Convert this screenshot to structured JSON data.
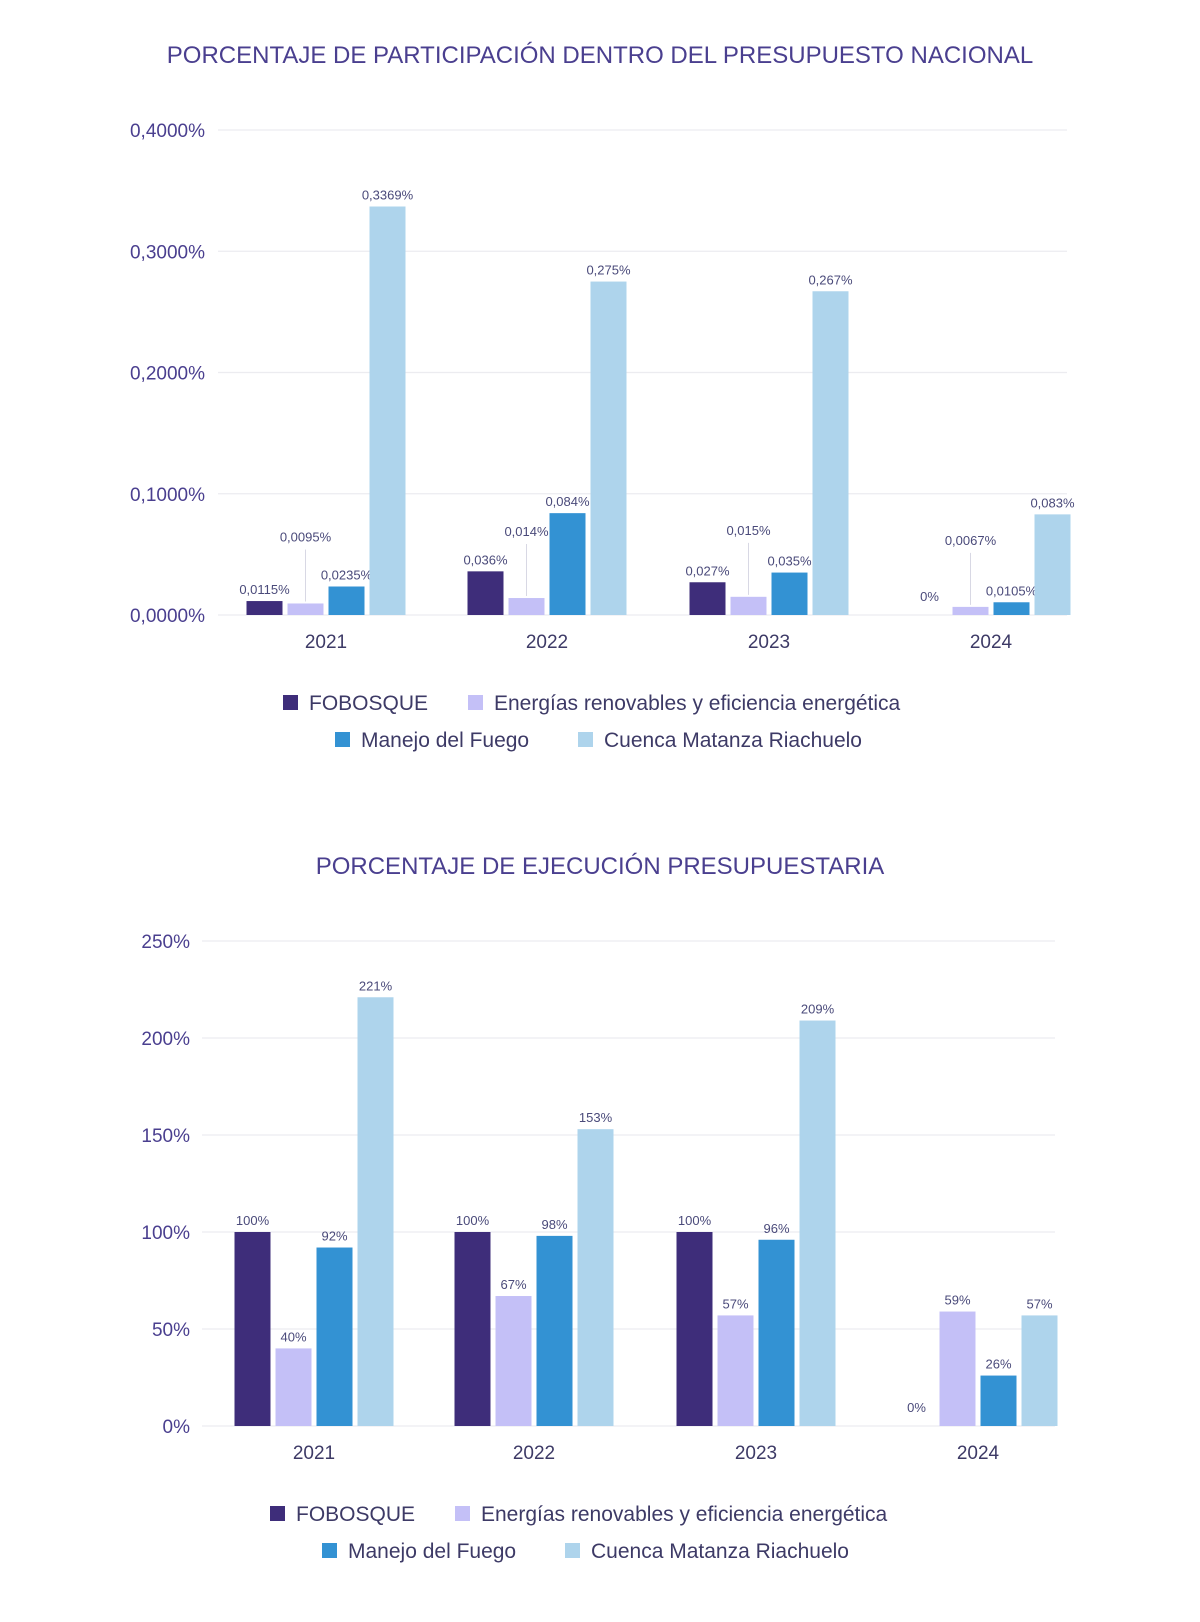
{
  "colors": {
    "FOBOSQUE": "#3e2d7a",
    "Energias": "#c4c0f7",
    "Fuego": "#3392d3",
    "Cuenca": "#aed4ec",
    "grid": "#ececf0"
  },
  "chart_data": [
    {
      "type": "bar",
      "title": "PORCENTAJE DE PARTICIPACIÓN DENTRO DEL PRESUPUESTO NACIONAL",
      "categories": [
        "2021",
        "2022",
        "2023",
        "2024"
      ],
      "ylim": [
        0,
        0.4
      ],
      "yticks": [
        0,
        0.1,
        0.2,
        0.3,
        0.4
      ],
      "ytick_labels": [
        "0,0000%",
        "0,1000%",
        "0,2000%",
        "0,3000%",
        "0,4000%"
      ],
      "grid": true,
      "legend_position": "bottom",
      "series": [
        {
          "name": "FOBOSQUE",
          "values": [
            0.0115,
            0.036,
            0.027,
            0
          ],
          "labels": [
            "0,0115%",
            "0,036%",
            "0,027%",
            "0%"
          ]
        },
        {
          "name": "Energías renovables y eficiencia energética",
          "values": [
            0.0095,
            0.014,
            0.015,
            0.0067
          ],
          "labels": [
            "0,0095%",
            "0,014%",
            "0,015%",
            "0,0067%"
          ]
        },
        {
          "name": "Manejo del Fuego",
          "values": [
            0.0235,
            0.084,
            0.035,
            0.0105
          ],
          "labels": [
            "0,0235%",
            "0,084%",
            "0,035%",
            "0,0105%"
          ]
        },
        {
          "name": "Cuenca Matanza Riachuelo",
          "values": [
            0.3369,
            0.275,
            0.267,
            0.083
          ],
          "labels": [
            "0,3369%",
            "0,275%",
            "0,267%",
            "0,083%"
          ]
        }
      ]
    },
    {
      "type": "bar",
      "title": "PORCENTAJE DE EJECUCIÓN PRESUPUESTARIA",
      "categories": [
        "2021",
        "2022",
        "2023",
        "2024"
      ],
      "ylim": [
        0,
        250
      ],
      "yticks": [
        0,
        50,
        100,
        150,
        200,
        250
      ],
      "ytick_labels": [
        "0%",
        "50%",
        "100%",
        "150%",
        "200%",
        "250%"
      ],
      "grid": true,
      "legend_position": "bottom",
      "series": [
        {
          "name": "FOBOSQUE",
          "values": [
            100,
            100,
            100,
            0
          ],
          "labels": [
            "100%",
            "100%",
            "100%",
            "0%"
          ]
        },
        {
          "name": "Energías renovables y eficiencia energética",
          "values": [
            40,
            67,
            57,
            59
          ],
          "labels": [
            "40%",
            "67%",
            "57%",
            "59%"
          ]
        },
        {
          "name": "Manejo del Fuego",
          "values": [
            92,
            98,
            96,
            26
          ],
          "labels": [
            "92%",
            "98%",
            "96%",
            "26%"
          ]
        },
        {
          "name": "Cuenca Matanza Riachuelo",
          "values": [
            221,
            153,
            209,
            57
          ],
          "labels": [
            "221%",
            "153%",
            "209%",
            "57%"
          ]
        }
      ]
    }
  ]
}
